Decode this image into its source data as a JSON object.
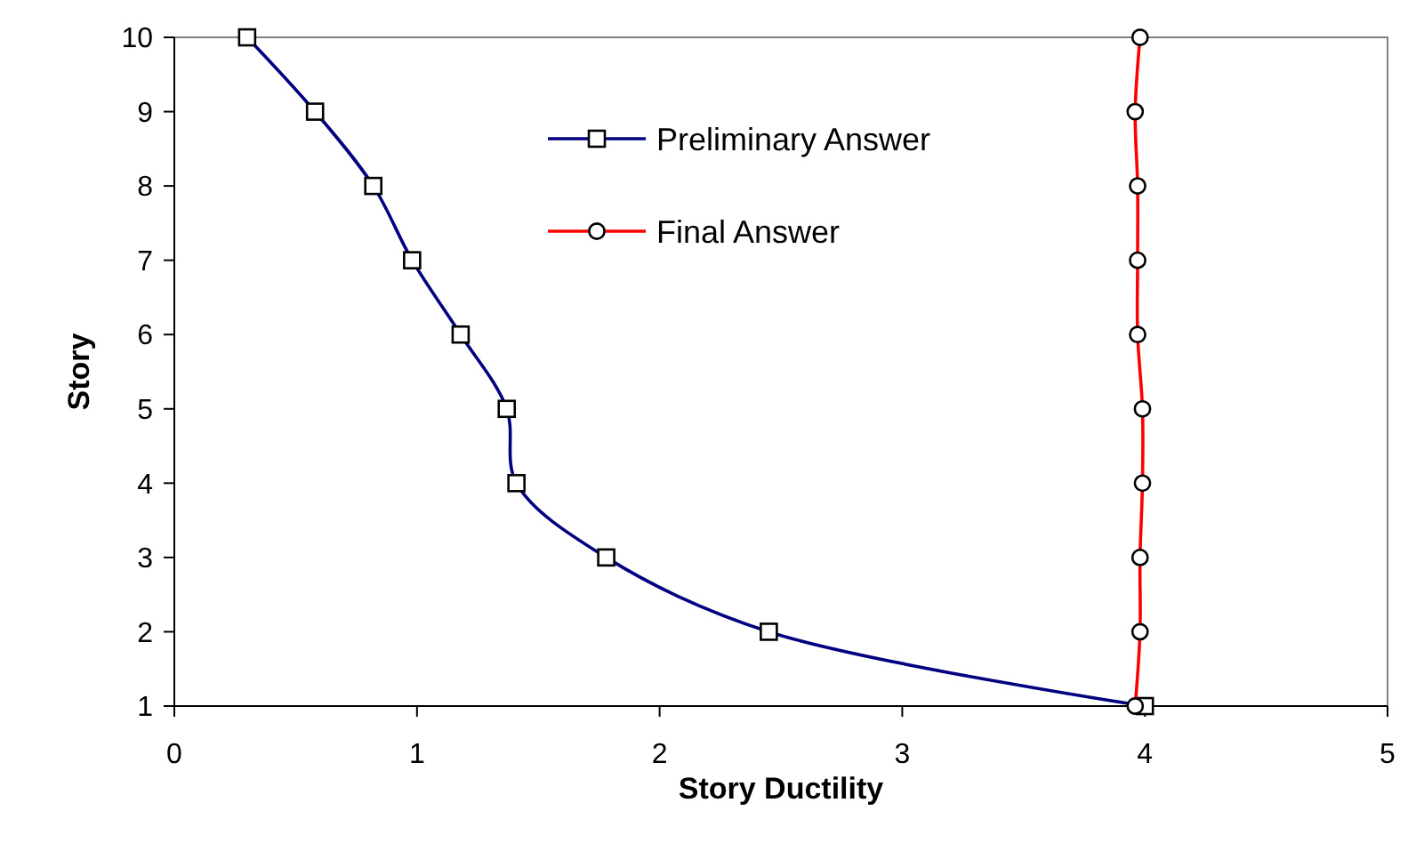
{
  "chart_data": {
    "type": "line",
    "xlabel": "Story Ductility",
    "ylabel": "Story",
    "xlim": [
      0,
      5
    ],
    "xticks": [
      0,
      1,
      2,
      3,
      4,
      5
    ],
    "ylim": [
      1,
      10
    ],
    "yticks": [
      1,
      2,
      3,
      4,
      5,
      6,
      7,
      8,
      9,
      10
    ],
    "legend": "top",
    "grid": false,
    "line_style": "solid",
    "series": [
      {
        "name": "Preliminary Answer",
        "color": "#000080",
        "marker": "square",
        "x": [
          4.0,
          2.45,
          1.78,
          1.41,
          1.37,
          1.18,
          0.98,
          0.82,
          0.58,
          0.3
        ],
        "values": [
          1,
          2,
          3,
          4,
          5,
          6,
          7,
          8,
          9,
          10
        ]
      },
      {
        "name": "Final Answer",
        "color": "#ff0000",
        "marker": "circle",
        "x": [
          3.96,
          3.98,
          3.98,
          3.99,
          3.99,
          3.97,
          3.97,
          3.97,
          3.96,
          3.98
        ],
        "values": [
          1,
          2,
          3,
          4,
          5,
          6,
          7,
          8,
          9,
          10
        ]
      }
    ]
  }
}
